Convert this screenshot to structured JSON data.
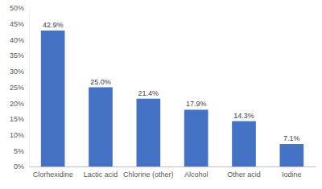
{
  "chart_data": {
    "type": "bar",
    "categories": [
      "Clorhexidine",
      "Lactic acid",
      "Chlorine (other)",
      "Alcohol",
      "Other acid",
      "Iodine"
    ],
    "values": [
      42.9,
      25.0,
      21.4,
      17.9,
      14.3,
      7.1
    ],
    "value_labels": [
      "42.9%",
      "25.0%",
      "21.4%",
      "17.9%",
      "14.3%",
      "7.1%"
    ],
    "color": "#4472c4",
    "ylim": [
      0,
      50
    ],
    "yticks": [
      {
        "value": 0,
        "label": "0%"
      },
      {
        "value": 5,
        "label": "5%"
      },
      {
        "value": 10,
        "label": "10%"
      },
      {
        "value": 15,
        "label": "15%"
      },
      {
        "value": 20,
        "label": "20%"
      },
      {
        "value": 25,
        "label": "25%"
      },
      {
        "value": 30,
        "label": "30%"
      },
      {
        "value": 35,
        "label": "35%"
      },
      {
        "value": 40,
        "label": "40%"
      },
      {
        "value": 45,
        "label": "45%"
      },
      {
        "value": 50,
        "label": "50%"
      }
    ],
    "grid": false,
    "data_labels": true
  }
}
